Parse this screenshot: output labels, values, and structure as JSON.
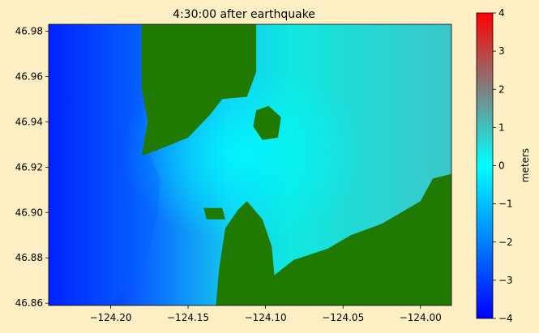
{
  "chart_data": {
    "type": "heatmap",
    "title": "4:30:00 after earthquake",
    "xlabel": "",
    "ylabel": "",
    "xlim": [
      -124.24,
      -123.98
    ],
    "ylim": [
      46.859,
      46.983
    ],
    "x_ticks": [
      {
        "value": -124.2,
        "label": "−124.20"
      },
      {
        "value": -124.15,
        "label": "−124.15"
      },
      {
        "value": -124.1,
        "label": "−124.10"
      },
      {
        "value": -124.05,
        "label": "−124.05"
      },
      {
        "value": -124.0,
        "label": "−124.00"
      }
    ],
    "y_ticks": [
      {
        "value": 46.86,
        "label": "46.86"
      },
      {
        "value": 46.88,
        "label": "46.88"
      },
      {
        "value": 46.9,
        "label": "46.90"
      },
      {
        "value": 46.92,
        "label": "46.92"
      },
      {
        "value": 46.94,
        "label": "46.94"
      },
      {
        "value": 46.96,
        "label": "46.96"
      },
      {
        "value": 46.98,
        "label": "46.98"
      }
    ],
    "colorbar": {
      "label": "meters",
      "range": [
        -4,
        4
      ],
      "ticks": [
        {
          "value": 4,
          "label": "4"
        },
        {
          "value": 3,
          "label": "3"
        },
        {
          "value": 2,
          "label": "2"
        },
        {
          "value": 1,
          "label": "1"
        },
        {
          "value": 0,
          "label": "0"
        },
        {
          "value": -1,
          "label": "−1"
        },
        {
          "value": -2,
          "label": "−2"
        },
        {
          "value": -3,
          "label": "−3"
        },
        {
          "value": -4,
          "label": "−4"
        }
      ],
      "colors": [
        "#0000FF",
        "#0080FF",
        "#00FFFF",
        "#808080",
        "#FF0000"
      ]
    },
    "land_color": "#217A00",
    "regions": {
      "land": [
        [
          [
            -124.1,
            46.859
          ],
          [
            -124.095,
            46.872
          ],
          [
            -124.082,
            46.879
          ],
          [
            -124.06,
            46.884
          ],
          [
            -124.045,
            46.89
          ],
          [
            -124.025,
            46.895
          ],
          [
            -124.0,
            46.905
          ],
          [
            -123.992,
            46.915
          ],
          [
            -123.98,
            46.917
          ],
          [
            -123.98,
            46.859
          ]
        ],
        [
          [
            -124.18,
            46.925
          ],
          [
            -124.168,
            46.928
          ],
          [
            -124.15,
            46.933
          ],
          [
            -124.136,
            46.943
          ],
          [
            -124.128,
            46.95
          ],
          [
            -124.112,
            46.951
          ],
          [
            -124.106,
            46.962
          ],
          [
            -124.106,
            46.983
          ],
          [
            -124.18,
            46.983
          ],
          [
            -124.18,
            46.955
          ],
          [
            -124.176,
            46.94
          ]
        ],
        [
          [
            -124.132,
            46.859
          ],
          [
            -124.13,
            46.875
          ],
          [
            -124.126,
            46.893
          ],
          [
            -124.118,
            46.901
          ],
          [
            -124.112,
            46.905
          ],
          [
            -124.102,
            46.897
          ],
          [
            -124.096,
            46.885
          ],
          [
            -124.094,
            46.87
          ],
          [
            -124.098,
            46.859
          ]
        ],
        [
          [
            -124.106,
            46.945
          ],
          [
            -124.098,
            46.947
          ],
          [
            -124.09,
            46.942
          ],
          [
            -124.092,
            46.933
          ],
          [
            -124.102,
            46.932
          ],
          [
            -124.108,
            46.938
          ]
        ],
        [
          [
            -124.14,
            46.902
          ],
          [
            -124.128,
            46.902
          ],
          [
            -124.126,
            46.897
          ],
          [
            -124.138,
            46.897
          ]
        ]
      ],
      "shallow": [
        [
          [
            -124.2,
            46.859
          ],
          [
            -124.178,
            46.876
          ],
          [
            -124.17,
            46.898
          ],
          [
            -124.168,
            46.915
          ],
          [
            -124.175,
            46.926
          ],
          [
            -124.18,
            46.945
          ],
          [
            -124.182,
            46.983
          ],
          [
            -124.24,
            46.983
          ],
          [
            -124.24,
            46.859
          ]
        ]
      ]
    }
  }
}
